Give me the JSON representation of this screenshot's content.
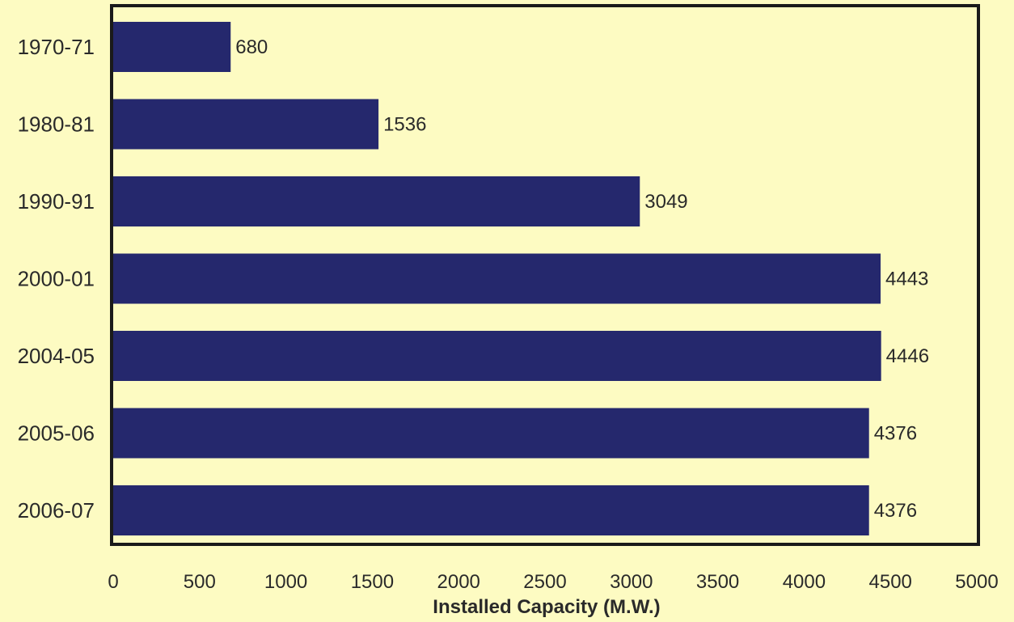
{
  "chart_data": {
    "type": "bar",
    "orientation": "horizontal",
    "categories": [
      "1970-71",
      "1980-81",
      "1990-91",
      "2000-01",
      "2004-05",
      "2005-06",
      "2006-07"
    ],
    "values": [
      680,
      1536,
      3049,
      4443,
      4446,
      4376,
      4376
    ],
    "value_labels": [
      "680",
      "1536",
      "3049",
      "4443",
      "4446",
      "4376",
      "4376"
    ],
    "xlabel": "Installed Capacity (M.W.)",
    "xlim": [
      0,
      5000
    ],
    "xticks": [
      "0",
      "500",
      "1000",
      "1500",
      "2000",
      "2500",
      "3000",
      "3500",
      "4000",
      "4500",
      "5000"
    ],
    "grid": false,
    "colors": {
      "background": "#fdfbc2",
      "bar": "#25286d",
      "frame": "#1a1a1a"
    }
  }
}
